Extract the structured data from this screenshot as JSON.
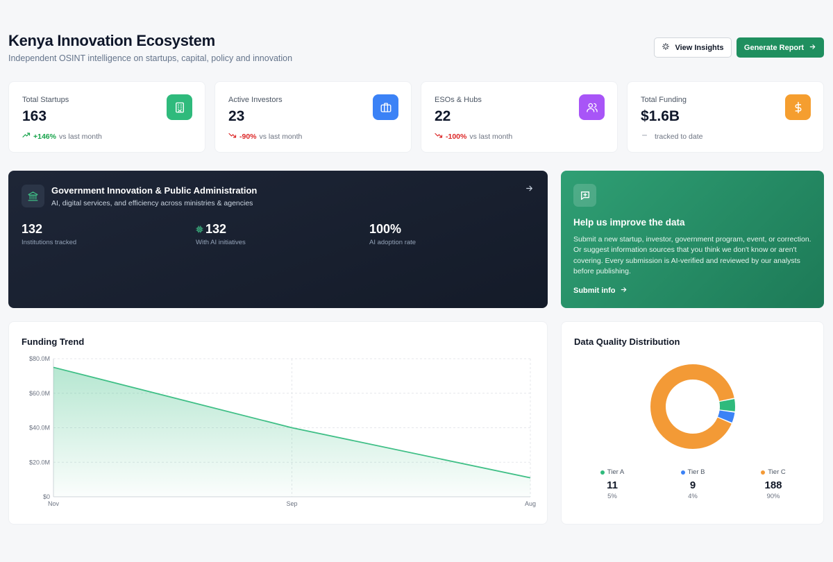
{
  "header": {
    "title": "Kenya Innovation Ecosystem",
    "subtitle": "Independent OSINT intelligence on startups, capital, policy and innovation",
    "view_insights_label": "View Insights",
    "generate_report_label": "Generate Report"
  },
  "stats": [
    {
      "label": "Total Startups",
      "value": "163",
      "change": "+146%",
      "suffix": "vs last month",
      "trend": "up",
      "icon": "building-icon",
      "color": "#2fba7c"
    },
    {
      "label": "Active Investors",
      "value": "23",
      "change": "-90%",
      "suffix": "vs last month",
      "trend": "down",
      "icon": "briefcase-icon",
      "color": "#3b82f6"
    },
    {
      "label": "ESOs & Hubs",
      "value": "22",
      "change": "-100%",
      "suffix": "vs last month",
      "trend": "down",
      "icon": "users-icon",
      "color": "#a855f7"
    },
    {
      "label": "Total Funding",
      "value": "$1.6B",
      "change": "",
      "suffix": "tracked to date",
      "trend": "flat",
      "icon": "dollar-icon",
      "color": "#f59e2f"
    }
  ],
  "gov": {
    "title": "Government Innovation & Public Administration",
    "subtitle": "AI, digital services, and efficiency across ministries & agencies",
    "stats": [
      {
        "value": "132",
        "label": "Institutions tracked"
      },
      {
        "value": "132",
        "label": "With AI initiatives"
      },
      {
        "value": "100%",
        "label": "AI adoption rate"
      }
    ]
  },
  "help": {
    "title": "Help us improve the data",
    "body": "Submit a new startup, investor, government program, event, or correction. Or suggest information sources that you think we don't know or aren't covering. Every submission is AI-verified and reviewed by our analysts before publishing.",
    "link": "Submit info"
  },
  "funding_trend": {
    "title": "Funding Trend"
  },
  "data_quality": {
    "title": "Data Quality Distribution",
    "tiers": [
      {
        "name": "Tier A",
        "count": "11",
        "pct": "5%",
        "color": "#2fba7c"
      },
      {
        "name": "Tier B",
        "count": "9",
        "pct": "4%",
        "color": "#3b82f6"
      },
      {
        "name": "Tier C",
        "count": "188",
        "pct": "90%",
        "color": "#f39a36"
      }
    ]
  },
  "chart_data": [
    {
      "type": "area",
      "title": "Funding Trend",
      "x": [
        "Nov",
        "Sep",
        "Aug"
      ],
      "values": [
        75,
        40,
        11
      ],
      "unit": "M",
      "yticks": [
        "$0",
        "$20.0M",
        "$40.0M",
        "$60.0M",
        "$80.0M"
      ],
      "ylim": [
        0,
        80
      ],
      "grid": true,
      "color": "#3fbf86"
    },
    {
      "type": "pie",
      "title": "Data Quality Distribution",
      "categories": [
        "Tier A",
        "Tier B",
        "Tier C"
      ],
      "values": [
        11,
        9,
        188
      ],
      "colors": [
        "#2fba7c",
        "#3b82f6",
        "#f39a36"
      ],
      "legend": "bottom"
    }
  ]
}
